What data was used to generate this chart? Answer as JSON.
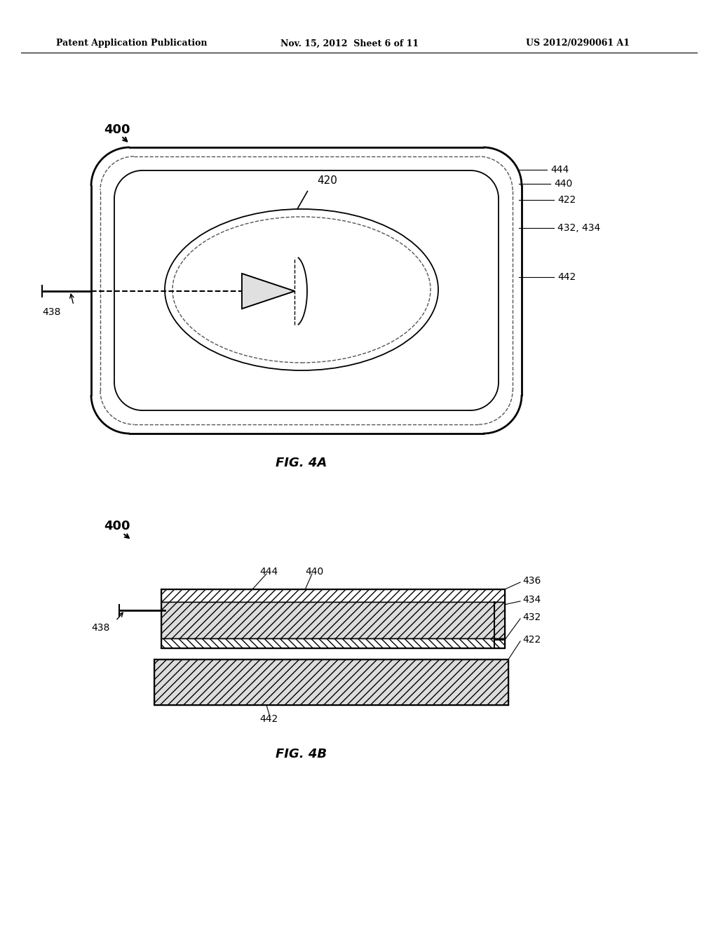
{
  "bg_color": "#ffffff",
  "header_left": "Patent Application Publication",
  "header_mid": "Nov. 15, 2012  Sheet 6 of 11",
  "header_right": "US 2012/0290061 A1",
  "fig4a_label": "FIG. 4A",
  "fig4b_label": "FIG. 4B",
  "label_400_top": "400",
  "label_400_bot": "400",
  "label_420": "420",
  "label_444": "444",
  "label_440": "440",
  "label_422": "422",
  "label_432_434": "432, 434",
  "label_442_top": "442",
  "label_438_top": "438",
  "label_444b": "444",
  "label_440b": "440",
  "label_436": "436",
  "label_434b": "434",
  "label_432b": "432",
  "label_442b": "442",
  "label_422b": "422",
  "label_438b": "438"
}
